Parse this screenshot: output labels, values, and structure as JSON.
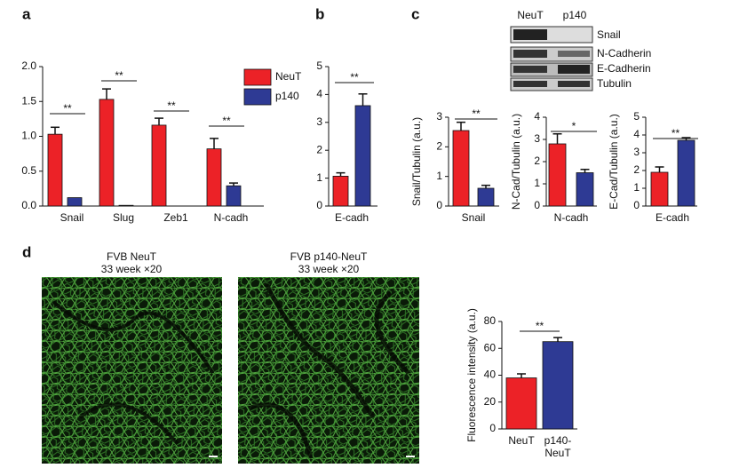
{
  "panel_labels": [
    "a",
    "b",
    "c",
    "d"
  ],
  "blot": {
    "lanes": [
      "NeuT",
      "p140"
    ],
    "rows": [
      "Snail",
      "N-Cadherin",
      "E-Cadherin",
      "Tubulin"
    ]
  },
  "images": [
    {
      "title": "FVB NeuT",
      "subtitle": "33 week ×20"
    },
    {
      "title": "FVB p140-NeuT",
      "subtitle": "33 week ×20"
    }
  ],
  "chart_data": [
    {
      "type": "bar",
      "categories": [
        "Snail",
        "Slug",
        "Zeb1",
        "N-cadh"
      ],
      "series": [
        {
          "name": "NeuT",
          "color": "#ec2227",
          "values": [
            1.03,
            1.53,
            1.16,
            0.82
          ],
          "errors": [
            0.1,
            0.15,
            0.1,
            0.15
          ]
        },
        {
          "name": "p140",
          "color": "#2e3a94",
          "values": [
            0.12,
            0.01,
            0.0,
            0.29
          ],
          "errors": [
            0.0,
            0.0,
            0.0,
            0.04
          ]
        }
      ],
      "ylim": [
        0,
        2.0
      ],
      "yticks": [
        {
          "value": 0,
          "label": "0.0"
        },
        {
          "value": 0.5,
          "label": "0.5"
        },
        {
          "value": 1.0,
          "label": "1.0"
        },
        {
          "value": 1.5,
          "label": "1.5"
        },
        {
          "value": 2.0,
          "label": "2.0"
        }
      ],
      "significance": [
        "**",
        "**",
        "**",
        "**"
      ],
      "legend": "upper right"
    },
    {
      "type": "bar",
      "categories": [
        "E-cadh"
      ],
      "series": [
        {
          "color": "#ec2227",
          "values": [
            1.07
          ],
          "errors": [
            0.12
          ]
        },
        {
          "color": "#2e3a94",
          "values": [
            3.6
          ],
          "errors": [
            0.42
          ]
        }
      ],
      "ylim": [
        0,
        5
      ],
      "yticks": [
        0,
        1,
        2,
        3,
        4,
        5
      ],
      "significance": [
        "**"
      ]
    },
    {
      "type": "bar",
      "ylabel": "Snail/Tubulin (a.u.)",
      "categories": [
        "Snail"
      ],
      "series": [
        {
          "color": "#ec2227",
          "values": [
            2.55
          ],
          "errors": [
            0.28
          ]
        },
        {
          "color": "#2e3a94",
          "values": [
            0.6
          ],
          "errors": [
            0.1
          ]
        }
      ],
      "ylim": [
        0,
        3
      ],
      "yticks": [
        0,
        1,
        2,
        3
      ],
      "significance": [
        "**"
      ]
    },
    {
      "type": "bar",
      "ylabel": "N-Cad/Tubulin (a.u.)",
      "categories": [
        "N-cadh"
      ],
      "series": [
        {
          "color": "#ec2227",
          "values": [
            2.8
          ],
          "errors": [
            0.45
          ]
        },
        {
          "color": "#2e3a94",
          "values": [
            1.5
          ],
          "errors": [
            0.15
          ]
        }
      ],
      "ylim": [
        0,
        4
      ],
      "yticks": [
        0,
        1,
        2,
        3,
        4
      ],
      "significance": [
        "*"
      ]
    },
    {
      "type": "bar",
      "ylabel": "E-Cad/Tubulin (a.u.)",
      "categories": [
        "E-cadh"
      ],
      "series": [
        {
          "color": "#ec2227",
          "values": [
            1.9
          ],
          "errors": [
            0.3
          ]
        },
        {
          "color": "#2e3a94",
          "values": [
            3.7
          ],
          "errors": [
            0.15
          ]
        }
      ],
      "ylim": [
        0,
        5
      ],
      "yticks": [
        0,
        1,
        2,
        3,
        4,
        5
      ],
      "significance": [
        "**"
      ]
    },
    {
      "type": "bar",
      "ylabel": "Fluorescence intensity (a.u.)",
      "categories": [
        "NeuT",
        "p140-NeuT"
      ],
      "values": [
        38,
        65
      ],
      "errors": [
        3,
        3
      ],
      "colors": [
        "#ec2227",
        "#2e3a94"
      ],
      "ylim": [
        0,
        80
      ],
      "yticks": [
        0,
        20,
        40,
        60,
        80
      ],
      "significance": [
        "**"
      ]
    }
  ]
}
